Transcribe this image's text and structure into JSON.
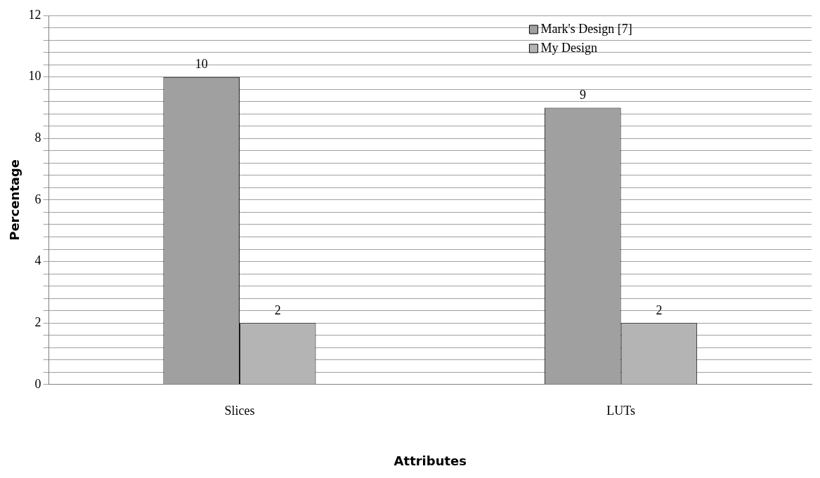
{
  "chart_data": {
    "type": "bar",
    "xlabel": "Attributes",
    "ylabel": "Percentage",
    "categories": [
      "Slices",
      "LUTs"
    ],
    "series": [
      {
        "name": "Mark's Design [7]",
        "color": "#a0a0a0",
        "values": [
          10,
          9
        ]
      },
      {
        "name": "My Design",
        "color": "#b4b4b4",
        "values": [
          2,
          2
        ]
      }
    ],
    "ylim": [
      0,
      12
    ],
    "yticks": [
      0,
      {
        "value": 0.4,
        "label": null
      },
      {
        "value": 0.8,
        "label": null
      },
      {
        "value": 1.2,
        "label": null
      },
      {
        "value": 1.6,
        "label": null
      },
      2,
      {
        "value": 2.4,
        "label": null
      },
      {
        "value": 2.8,
        "label": null
      },
      {
        "value": 3.2,
        "label": null
      },
      {
        "value": 3.6,
        "label": null
      },
      4,
      {
        "value": 4.4,
        "label": null
      },
      {
        "value": 4.8,
        "label": null
      },
      {
        "value": 5.2,
        "label": null
      },
      {
        "value": 5.6,
        "label": null
      },
      6,
      {
        "value": 6.4,
        "label": null
      },
      {
        "value": 6.8,
        "label": null
      },
      {
        "value": 7.2,
        "label": null
      },
      {
        "value": 7.6,
        "label": null
      },
      8,
      {
        "value": 8.4,
        "label": null
      },
      {
        "value": 8.8,
        "label": null
      },
      {
        "value": 9.2,
        "label": null
      },
      {
        "value": 9.6,
        "label": null
      },
      10,
      {
        "value": 10.4,
        "label": null
      },
      {
        "value": 10.8,
        "label": null
      },
      {
        "value": 11.2,
        "label": null
      },
      {
        "value": 11.6,
        "label": null
      },
      12
    ],
    "grid": "y",
    "legend": "top right",
    "data_labels": true
  }
}
